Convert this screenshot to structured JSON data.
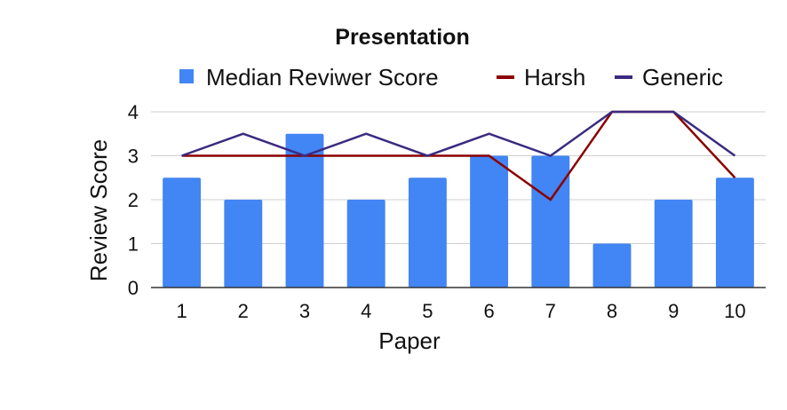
{
  "chart_data": {
    "type": "bar",
    "title": "Presentation",
    "xlabel": "Paper",
    "ylabel": "Review Score",
    "categories": [
      "1",
      "2",
      "3",
      "4",
      "5",
      "6",
      "7",
      "8",
      "9",
      "10"
    ],
    "ylim": [
      0,
      4
    ],
    "yticks": [
      "0",
      "1",
      "2",
      "3",
      "4"
    ],
    "grid": true,
    "legend_position": "top",
    "series": [
      {
        "name": "Median Reviwer Score",
        "type": "bar",
        "color": "#4285f4",
        "values": [
          2.5,
          2,
          3.5,
          2,
          2.5,
          3,
          3,
          1,
          2,
          2.5
        ]
      },
      {
        "name": "Harsh",
        "type": "line",
        "color": "#8b0000",
        "values": [
          3,
          3,
          3,
          3,
          3,
          3,
          2,
          4,
          4,
          2.5
        ]
      },
      {
        "name": "Generic",
        "type": "line",
        "color": "#3b2a80",
        "values": [
          3,
          3.5,
          3,
          3.5,
          3,
          3.5,
          3,
          4,
          4,
          3
        ]
      }
    ]
  }
}
